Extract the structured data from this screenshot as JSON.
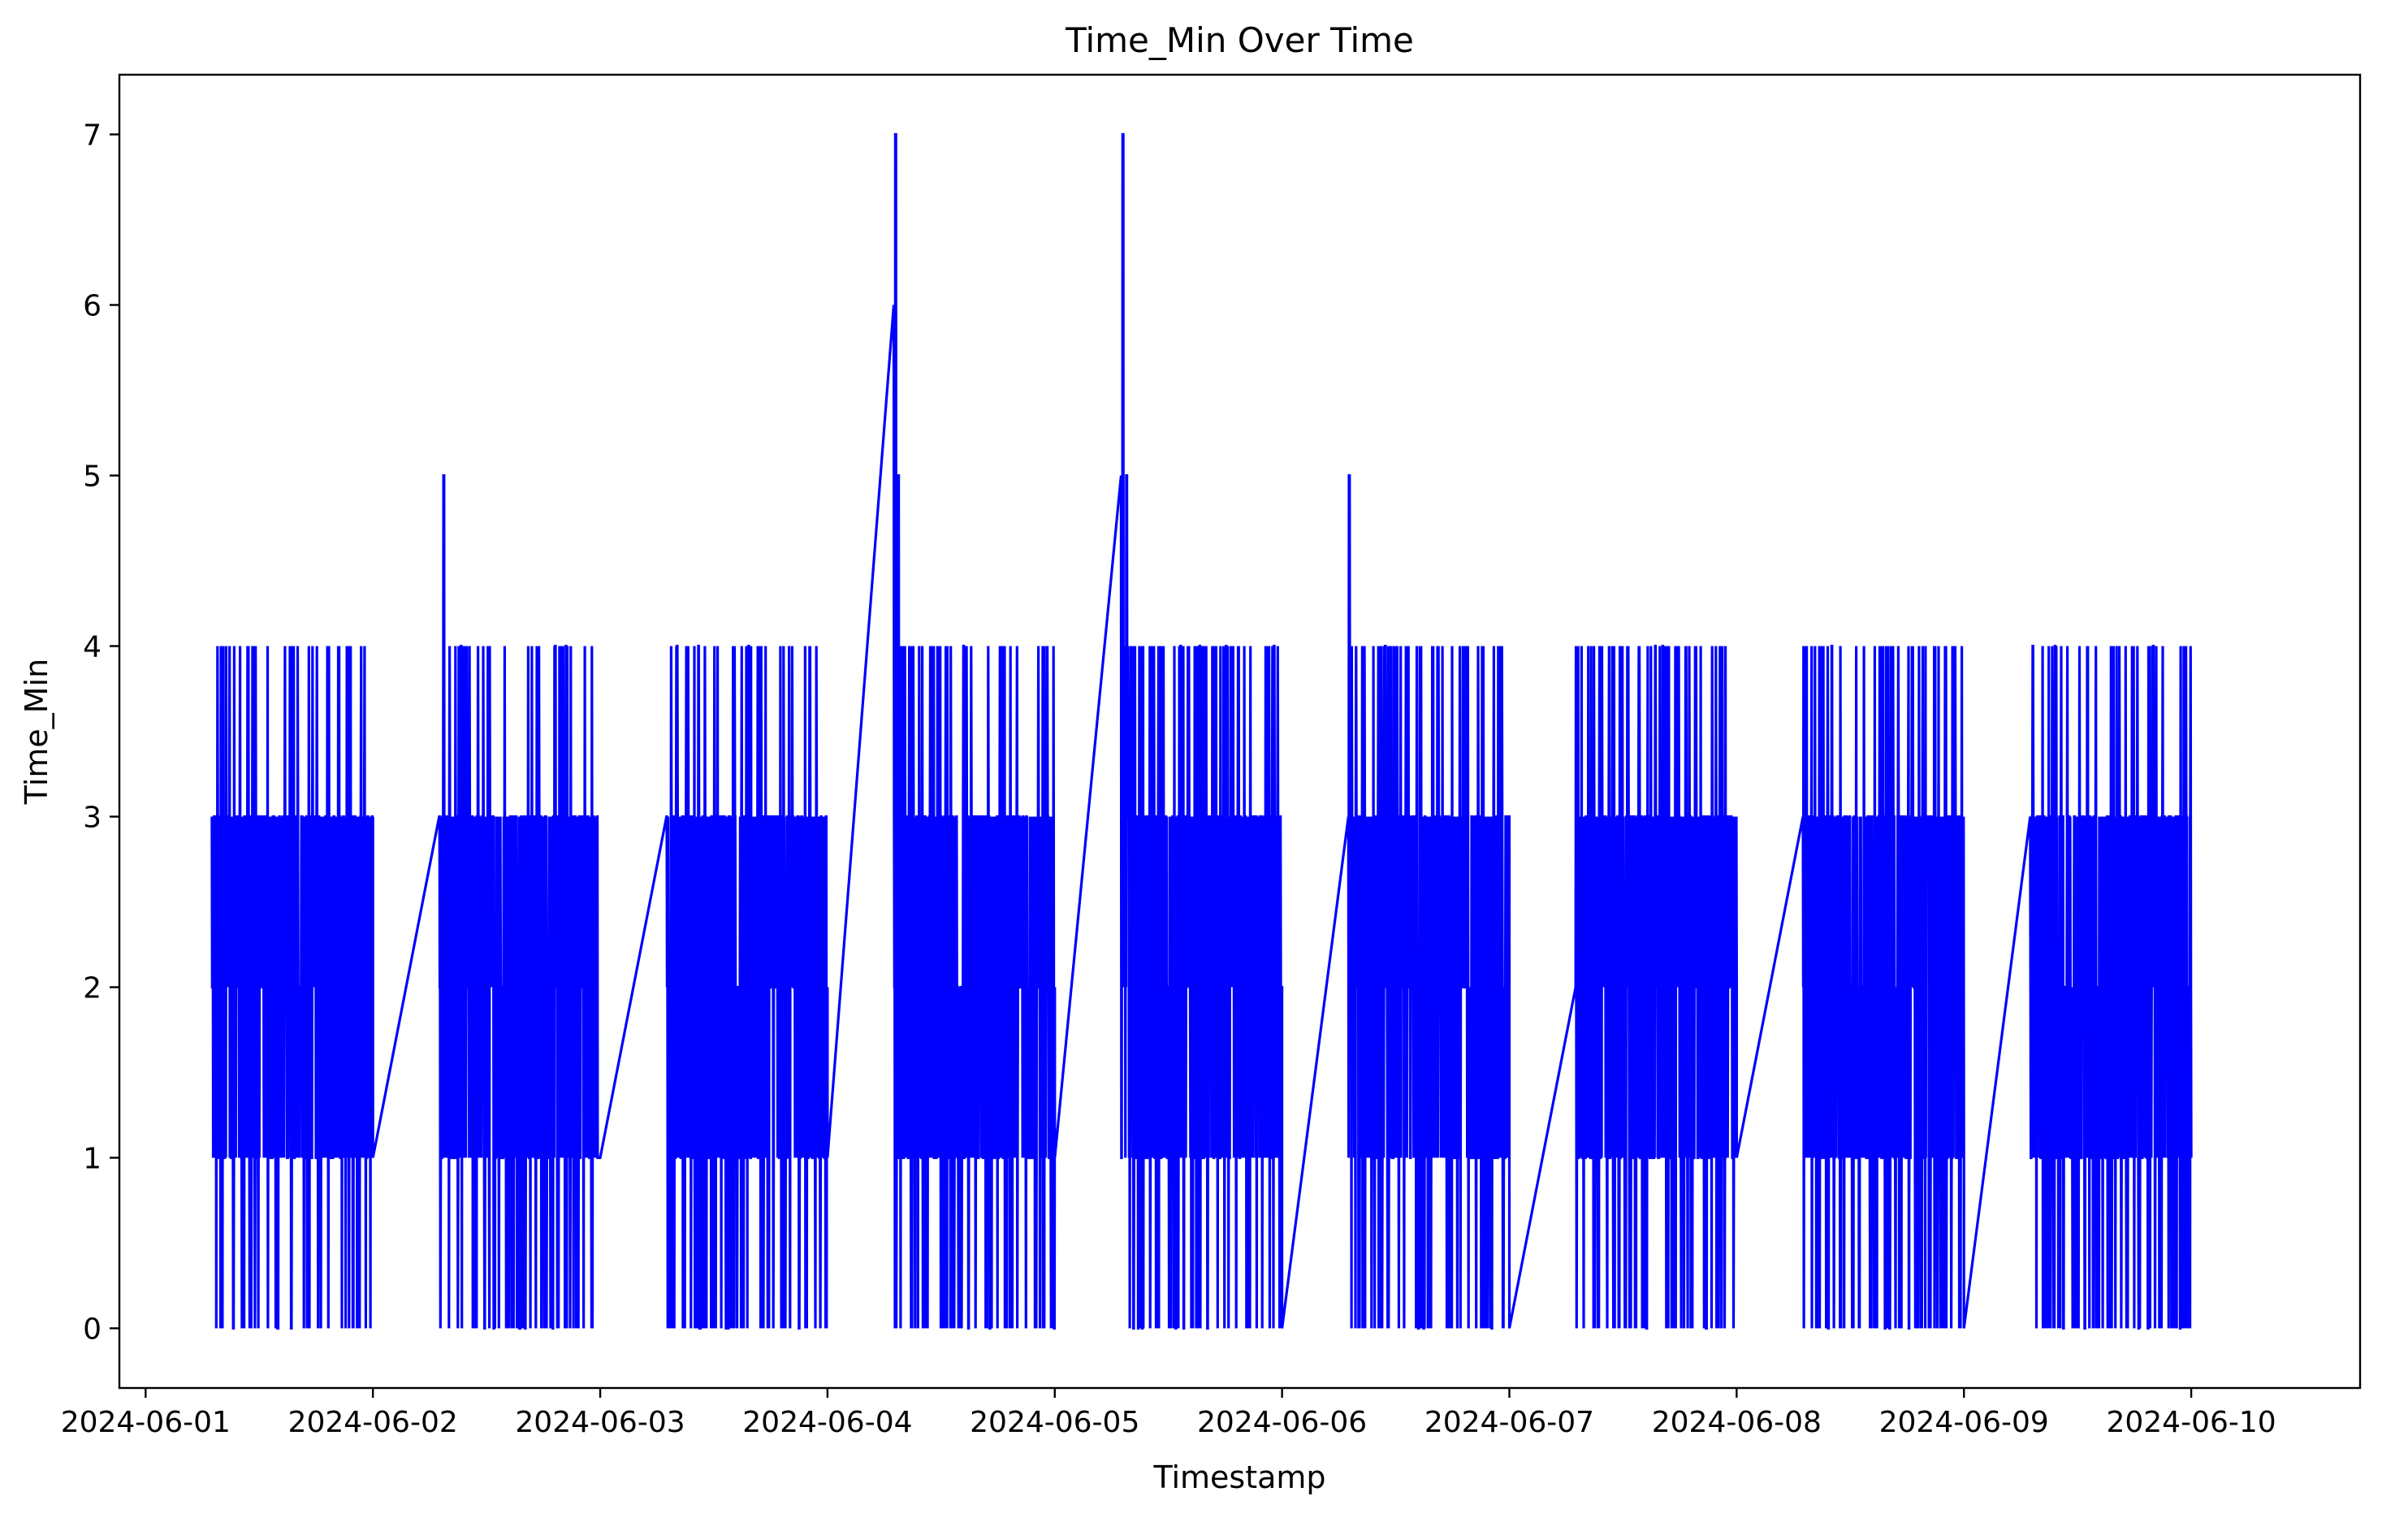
{
  "chart_data": {
    "type": "line",
    "title": "Time_Min Over Time",
    "xlabel": "Timestamp",
    "ylabel": "Time_Min",
    "x_tick_labels": [
      "2024-06-01",
      "2024-06-02",
      "2024-06-03",
      "2024-06-04",
      "2024-06-05",
      "2024-06-06",
      "2024-06-07",
      "2024-06-08",
      "2024-06-09",
      "2024-06-10"
    ],
    "y_tick_labels": [
      "0",
      "1",
      "2",
      "3",
      "4",
      "5",
      "6",
      "7"
    ],
    "xlim": [
      "2024-06-00T21:14",
      "2024-06-10T09:50"
    ],
    "ylim": [
      -0.35,
      7.35
    ],
    "grid": false,
    "line_color": "#0000ff",
    "series": [
      {
        "x_unit": "hours since the start of the 2024-06-01 tick",
        "active_windows": [
          {
            "day": "2024-06-01",
            "start": 7,
            "end": 24,
            "spikes": []
          },
          {
            "day": "2024-06-02",
            "start": 7,
            "end": 23.8,
            "spikes": [
              [
                7.5,
                5
              ]
            ]
          },
          {
            "day": "2024-06-03",
            "start": 7,
            "end": 24,
            "spikes": []
          },
          {
            "day": "2024-06-04",
            "start": 7,
            "end": 24,
            "spikes": [
              [
                7.2,
                7
              ],
              [
                7.5,
                5
              ]
            ]
          },
          {
            "day": "2024-06-05",
            "start": 7,
            "end": 24,
            "spikes": [
              [
                7.2,
                7
              ],
              [
                7.6,
                5
              ]
            ]
          },
          {
            "day": "2024-06-06",
            "start": 7,
            "end": 24,
            "spikes": [
              [
                7.1,
                5
              ]
            ]
          },
          {
            "day": "2024-06-07",
            "start": 7,
            "end": 24,
            "spikes": []
          },
          {
            "day": "2024-06-08",
            "start": 7,
            "end": 24,
            "spikes": []
          },
          {
            "day": "2024-06-09",
            "start": 7,
            "end": 24,
            "spikes": []
          }
        ],
        "value_range": [
          0,
          4
        ],
        "typical_range": [
          1,
          3
        ],
        "overnight_links": [
          {
            "from": [
              "2024-06-01T24:00",
              1
            ],
            "to": [
              "2024-06-02T07:00",
              3
            ]
          },
          {
            "from": [
              "2024-06-02T24:00",
              1
            ],
            "to": [
              "2024-06-03T07:00",
              3
            ]
          },
          {
            "from": [
              "2024-06-03T24:00",
              1
            ],
            "to": [
              "2024-06-04T07:00",
              6
            ]
          },
          {
            "from": [
              "2024-06-04T24:00",
              1
            ],
            "to": [
              "2024-06-05T07:00",
              5
            ]
          },
          {
            "from": [
              "2024-06-05T24:00",
              0
            ],
            "to": [
              "2024-06-06T07:00",
              3
            ]
          },
          {
            "from": [
              "2024-06-06T24:00",
              0
            ],
            "to": [
              "2024-06-07T07:00",
              2
            ]
          },
          {
            "from": [
              "2024-06-07T24:00",
              1
            ],
            "to": [
              "2024-06-08T07:00",
              3
            ]
          },
          {
            "from": [
              "2024-06-08T24:00",
              0
            ],
            "to": [
              "2024-06-09T07:00",
              3
            ]
          }
        ]
      }
    ]
  }
}
